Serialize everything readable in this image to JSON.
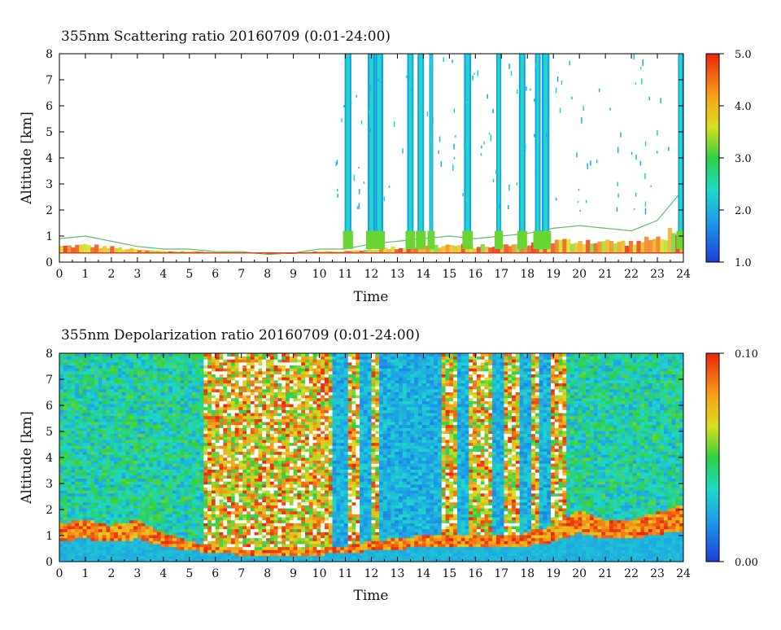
{
  "chart_data": [
    {
      "type": "heatmap",
      "title": "355nm Scattering ratio  20160709 (0:01-24:00)",
      "xlabel": "Time",
      "ylabel": "Altitude [km]",
      "xlim": [
        0,
        24
      ],
      "ylim": [
        0,
        8
      ],
      "x_ticks": [
        "0",
        "1",
        "2",
        "3",
        "4",
        "5",
        "6",
        "7",
        "8",
        "9",
        "10",
        "11",
        "12",
        "13",
        "14",
        "15",
        "16",
        "17",
        "18",
        "19",
        "20",
        "21",
        "22",
        "23",
        "24"
      ],
      "y_ticks": [
        "0",
        "1",
        "2",
        "3",
        "4",
        "5",
        "6",
        "7",
        "8"
      ],
      "colorbar": {
        "range": [
          1.0,
          5.0
        ],
        "tick_labels": [
          "1.0",
          "2.0",
          "3.0",
          "4.0",
          "5.0"
        ],
        "tick_values": [
          1.0,
          2.0,
          3.0,
          4.0,
          5.0
        ],
        "colormap": "blue-cyan-green-yellow-orange-red"
      },
      "features": {
        "boundary_layer_top_km": [
          [
            0,
            0.9
          ],
          [
            1,
            1.0
          ],
          [
            2,
            0.8
          ],
          [
            3,
            0.6
          ],
          [
            4,
            0.5
          ],
          [
            5,
            0.5
          ],
          [
            6,
            0.4
          ],
          [
            7,
            0.4
          ],
          [
            8,
            0.3
          ],
          [
            9,
            0.35
          ],
          [
            10,
            0.5
          ],
          [
            11,
            0.5
          ],
          [
            12,
            0.7
          ],
          [
            13,
            0.8
          ],
          [
            14,
            0.9
          ],
          [
            15,
            1.0
          ],
          [
            16,
            0.9
          ],
          [
            17,
            1.0
          ],
          [
            18,
            1.1
          ],
          [
            19,
            1.3
          ],
          [
            20,
            1.4
          ],
          [
            21,
            1.3
          ],
          [
            22,
            1.2
          ],
          [
            23,
            1.6
          ],
          [
            24,
            2.8
          ]
        ],
        "cloud_columns_hours": [
          11.1,
          12.0,
          12.3,
          13.5,
          13.9,
          14.3,
          15.7,
          16.9,
          17.8,
          18.4,
          18.7,
          23.9
        ],
        "surface_line_km": 0.35
      }
    },
    {
      "type": "heatmap",
      "title": "355nm Depolarization ratio  20160709 (0:01-24:00)",
      "xlabel": "Time",
      "ylabel": "Altitude [km]",
      "xlim": [
        0,
        24
      ],
      "ylim": [
        0,
        8
      ],
      "x_ticks": [
        "0",
        "1",
        "2",
        "3",
        "4",
        "5",
        "6",
        "7",
        "8",
        "9",
        "10",
        "11",
        "12",
        "13",
        "14",
        "15",
        "16",
        "17",
        "18",
        "19",
        "20",
        "21",
        "22",
        "23",
        "24"
      ],
      "y_ticks": [
        "0",
        "1",
        "2",
        "3",
        "4",
        "5",
        "6",
        "7",
        "8"
      ],
      "colorbar": {
        "range": [
          0.0,
          0.1
        ],
        "tick_labels": [
          "0.00",
          "0.10"
        ],
        "tick_values": [
          0.0,
          0.1
        ],
        "colormap": "blue-cyan-green-yellow-orange-red"
      },
      "features": {
        "high_noise_period_hours": [
          5.5,
          19.5
        ],
        "low_depol_columns_hours": [
          10.8,
          11.8,
          12.6,
          13.2,
          13.6,
          14.0,
          14.4,
          15.5,
          16.9,
          17.9,
          18.7
        ],
        "boundary_layer_top_km": [
          [
            0,
            1.5
          ],
          [
            1,
            1.6
          ],
          [
            2,
            1.4
          ],
          [
            3,
            1.6
          ],
          [
            4,
            1.1
          ],
          [
            5,
            0.8
          ],
          [
            6,
            0.6
          ],
          [
            7,
            0.5
          ],
          [
            8,
            0.5
          ],
          [
            9,
            0.5
          ],
          [
            10,
            0.5
          ],
          [
            11,
            0.6
          ],
          [
            12,
            0.8
          ],
          [
            13,
            0.9
          ],
          [
            14,
            1.0
          ],
          [
            15,
            1.0
          ],
          [
            16,
            1.0
          ],
          [
            17,
            1.0
          ],
          [
            18,
            1.1
          ],
          [
            19,
            1.4
          ],
          [
            20,
            2.0
          ],
          [
            21,
            1.6
          ],
          [
            22,
            1.6
          ],
          [
            23,
            1.9
          ],
          [
            24,
            2.2
          ]
        ]
      }
    }
  ]
}
